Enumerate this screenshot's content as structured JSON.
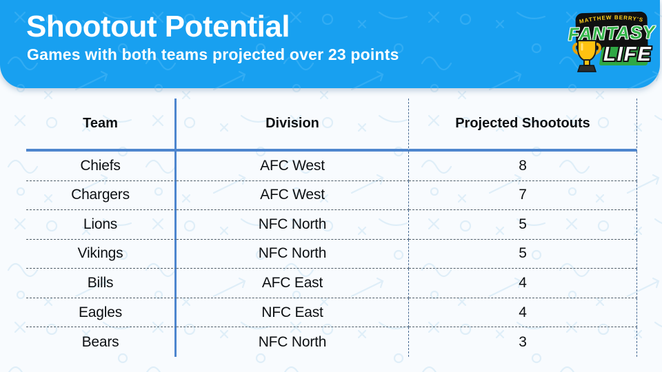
{
  "logo": {
    "brand_top": "MATTHEW BERRY'S",
    "brand_main": "FANTASY",
    "brand_sub": "LIFE",
    "trophy_icon": "trophy-icon"
  },
  "colors": {
    "banner_blue": "#18A0F0",
    "page_background": "#F8FBFE",
    "table_solid_line": "#4E86CE",
    "table_dashed_row_line": "#4D5B66",
    "table_dashed_column_line": "#476A93",
    "title_text": "#FFFFFF",
    "body_text": "#0C0F12",
    "logo_green": "#35B44A",
    "logo_yellow": "#FFD21E",
    "trophy_gold": "#FFC211"
  },
  "chart_data": {
    "type": "table",
    "title": "Shootout Potential",
    "subtitle": "Games with both teams projected over 23 points",
    "columns": [
      "Team",
      "Division",
      "Projected Shootouts"
    ],
    "rows": [
      [
        "Chiefs",
        "AFC West",
        8
      ],
      [
        "Chargers",
        "AFC West",
        7
      ],
      [
        "Lions",
        "NFC North",
        5
      ],
      [
        "Vikings",
        "NFC North",
        5
      ],
      [
        "Bills",
        "AFC East",
        4
      ],
      [
        "Eagles",
        "NFC East",
        4
      ],
      [
        "Bears",
        "NFC North",
        3
      ]
    ],
    "layout": {
      "legend": "none",
      "grid": "dashed horizontal row separators; solid blue divider after Team column; dashed blue dividers after Division and Projected Shootouts columns; thick blue underline below header row"
    }
  }
}
